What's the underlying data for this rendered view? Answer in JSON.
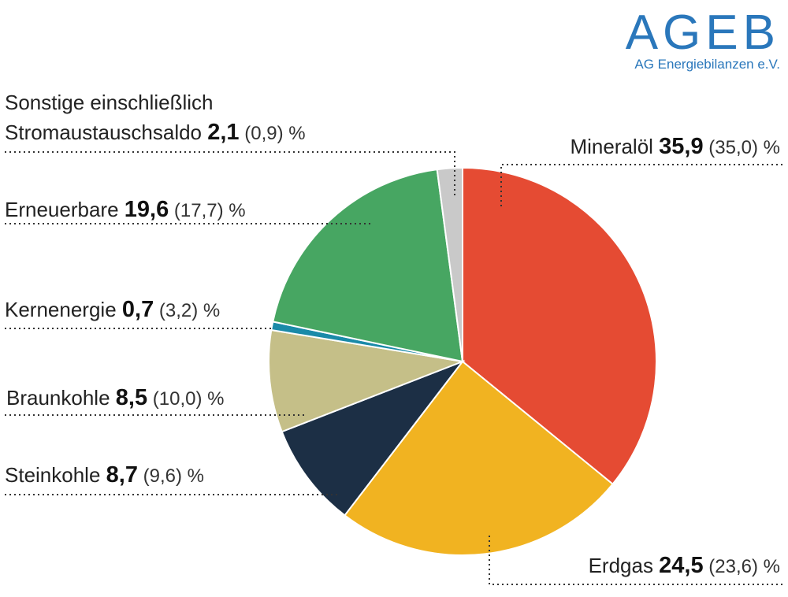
{
  "brand": {
    "name": "AGEB",
    "subtitle": "AG Energiebilanzen e.V.",
    "color": "#2a77bb"
  },
  "chart_data": {
    "type": "pie",
    "unit": "%",
    "start": "top, clockwise",
    "series": [
      {
        "key": "mineraloel",
        "label": "Mineralöl",
        "value": 35.9,
        "value_text": "35,9",
        "previous": "(35,0)",
        "color": "#e54b33"
      },
      {
        "key": "erdgas",
        "label": "Erdgas",
        "value": 24.5,
        "value_text": "24,5",
        "previous": "(23,6)",
        "color": "#f1b321"
      },
      {
        "key": "steinkohle",
        "label": "Steinkohle",
        "value": 8.7,
        "value_text": "8,7",
        "previous": "(9,6)",
        "color": "#1c2f45"
      },
      {
        "key": "braunkohle",
        "label": "Braunkohle",
        "value": 8.5,
        "value_text": "8,5",
        "previous": "(10,0)",
        "color": "#c5bf88"
      },
      {
        "key": "kernenergie",
        "label": "Kernenergie",
        "value": 0.7,
        "value_text": "0,7",
        "previous": "(3,2)",
        "color": "#1a8aa8"
      },
      {
        "key": "erneuerbare",
        "label": "Erneuerbare",
        "value": 19.6,
        "value_text": "19,6",
        "previous": "(17,7)",
        "color": "#47a662"
      },
      {
        "key": "sonstige",
        "label": "Stromaustauschsaldo",
        "label_prefix": "Sonstige einschließlich",
        "value": 2.1,
        "value_text": "2,1",
        "previous": "(0,9)",
        "color": "#c9c9c9"
      }
    ]
  }
}
